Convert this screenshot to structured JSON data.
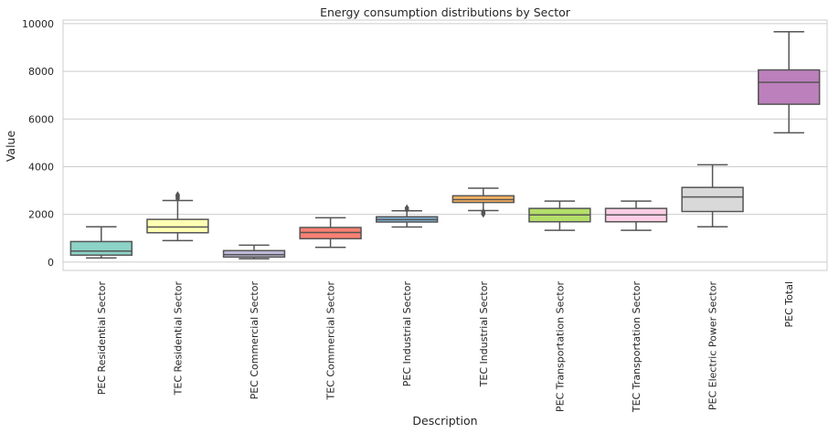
{
  "chart_data": {
    "type": "box",
    "title": "Energy consumption distributions by Sector",
    "xlabel": "Description",
    "ylabel": "Value",
    "ylim": [
      -350,
      10150
    ],
    "yticks": [
      0,
      2000,
      4000,
      6000,
      8000,
      10000
    ],
    "grid": "horizontal",
    "categories": [
      "PEC Residential Sector",
      "TEC Residential Sector",
      "PEC Commercial Sector",
      "TEC Commercial Sector",
      "PEC Industrial Sector",
      "TEC Industrial Sector",
      "PEC Transportation Sector",
      "TEC Transportation Sector",
      "PEC Electric Power Sector",
      "PEC Total"
    ],
    "boxes": [
      {
        "whisker_low": 170,
        "q1": 290,
        "median": 460,
        "q3": 860,
        "whisker_high": 1480,
        "outliers": [],
        "color": "#8dd3c7"
      },
      {
        "whisker_low": 900,
        "q1": 1230,
        "median": 1470,
        "q3": 1790,
        "whisker_high": 2580,
        "outliers": [
          2660,
          2720,
          2780,
          2820
        ],
        "color": "#ffffb3"
      },
      {
        "whisker_low": 140,
        "q1": 210,
        "median": 310,
        "q3": 480,
        "whisker_high": 710,
        "outliers": [],
        "color": "#bebada"
      },
      {
        "whisker_low": 620,
        "q1": 980,
        "median": 1240,
        "q3": 1450,
        "whisker_high": 1860,
        "outliers": [],
        "color": "#fb8072"
      },
      {
        "whisker_low": 1470,
        "q1": 1680,
        "median": 1780,
        "q3": 1900,
        "whisker_high": 2150,
        "outliers": [
          2200,
          2270
        ],
        "color": "#80b1d3"
      },
      {
        "whisker_low": 2160,
        "q1": 2500,
        "median": 2620,
        "q3": 2780,
        "whisker_high": 3100,
        "outliers": [
          2010,
          2060,
          2110
        ],
        "color": "#fdb462"
      },
      {
        "whisker_low": 1330,
        "q1": 1690,
        "median": 1980,
        "q3": 2250,
        "whisker_high": 2560,
        "outliers": [],
        "color": "#b3de69"
      },
      {
        "whisker_low": 1330,
        "q1": 1690,
        "median": 1980,
        "q3": 2250,
        "whisker_high": 2560,
        "outliers": [],
        "color": "#fccde5"
      },
      {
        "whisker_low": 1480,
        "q1": 2120,
        "median": 2730,
        "q3": 3130,
        "whisker_high": 4080,
        "outliers": [],
        "color": "#d9d9d9"
      },
      {
        "whisker_low": 5420,
        "q1": 6620,
        "median": 7540,
        "q3": 8060,
        "whisker_high": 9660,
        "outliers": [],
        "color": "#bc80bd"
      }
    ]
  }
}
